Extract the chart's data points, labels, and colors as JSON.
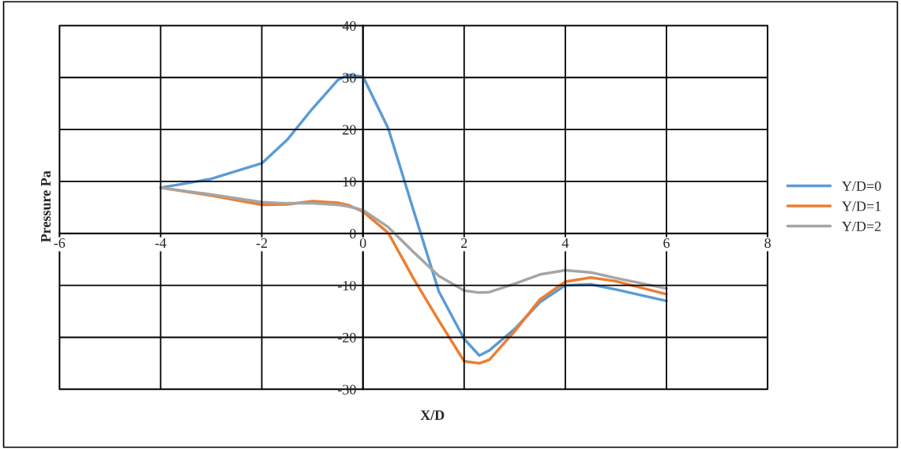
{
  "chart_data": {
    "type": "line",
    "xlabel": "X/D",
    "ylabel": "Pressure Pa",
    "x": [
      -4,
      -3,
      -2,
      -1.5,
      -1,
      -0.5,
      -0.3,
      0,
      0.5,
      1,
      1.5,
      2,
      2.3,
      2.5,
      3,
      3.5,
      4,
      4.5,
      5,
      6
    ],
    "series": [
      {
        "name": "Y/D=0",
        "color": "#5b9bd5",
        "values": [
          8.8,
          10.5,
          13.5,
          18,
          24,
          29.5,
          30.5,
          30.2,
          20.2,
          4.4,
          -11.2,
          -20.3,
          -23.5,
          -22.5,
          -18.4,
          -13.2,
          -10,
          -9.8,
          -10.8,
          -13
        ]
      },
      {
        "name": "Y/D=1",
        "color": "#ed7d31",
        "values": [
          8.8,
          7.3,
          5.5,
          5.6,
          6.2,
          5.9,
          5.5,
          4.2,
          0.1,
          -8.7,
          -16.8,
          -24.6,
          -25,
          -24.3,
          -18.8,
          -12.7,
          -9.3,
          -8.5,
          -9.2,
          -11.7
        ]
      },
      {
        "name": "Y/D=2",
        "color": "#a5a5a5",
        "values": [
          8.8,
          7.5,
          6.0,
          5.8,
          5.8,
          5.5,
          5.2,
          4.5,
          1.2,
          -3.6,
          -8.2,
          -11,
          -11.4,
          -11.3,
          -9.7,
          -7.9,
          -7.1,
          -7.5,
          -8.6,
          -10.6
        ]
      }
    ],
    "xlim": [
      -6,
      8
    ],
    "xticks": [
      -6,
      -4,
      -2,
      0,
      2,
      4,
      6,
      8
    ],
    "ylim": [
      -30,
      40
    ],
    "yticks": [
      -30,
      -20,
      -10,
      0,
      10,
      20,
      30,
      40
    ],
    "grid": true,
    "legend": "right",
    "line_style": "solid"
  }
}
